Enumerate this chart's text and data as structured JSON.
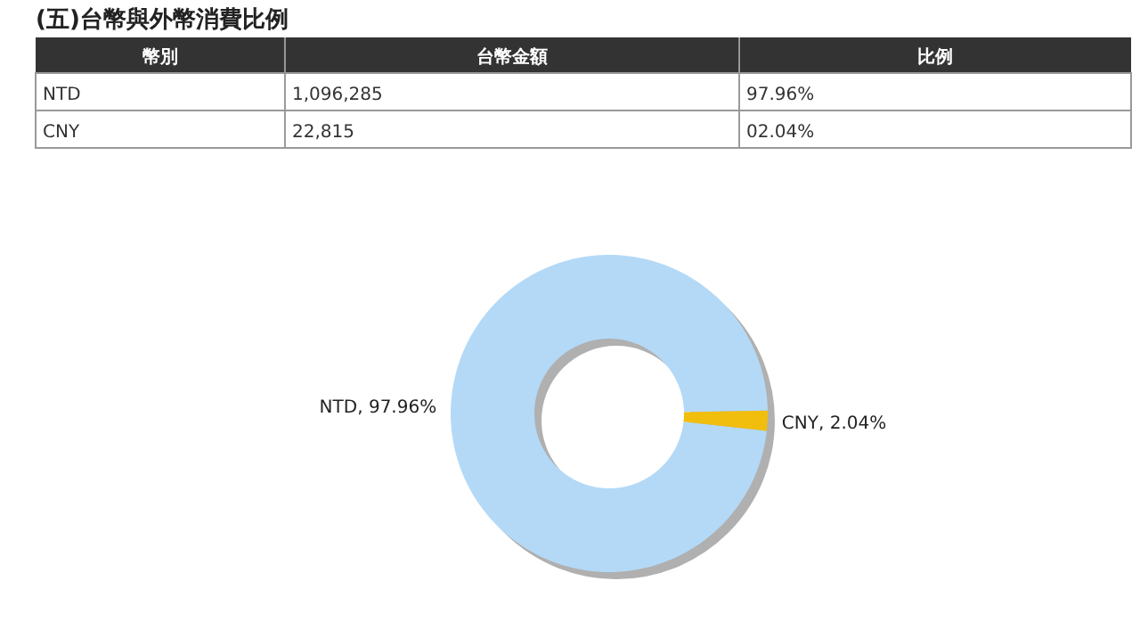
{
  "chart_data": [
    {
      "type": "other",
      "title": "(五)台幣與外幣消費比例",
      "categories": [
        "幣別",
        "台幣金額",
        "比例"
      ],
      "annotations": [
        "NTD",
        "1,096,285",
        "97.96%",
        "CNY",
        "22,815",
        "02.04%"
      ]
    },
    {
      "type": "donut",
      "categories": [
        "NTD",
        "CNY"
      ],
      "values": [
        97.96,
        2.04
      ],
      "colors": [
        "#b3d9f7",
        "#f2be0e"
      ],
      "value_labels": [
        ", 97.96%",
        ", 2.04%"
      ]
    }
  ]
}
